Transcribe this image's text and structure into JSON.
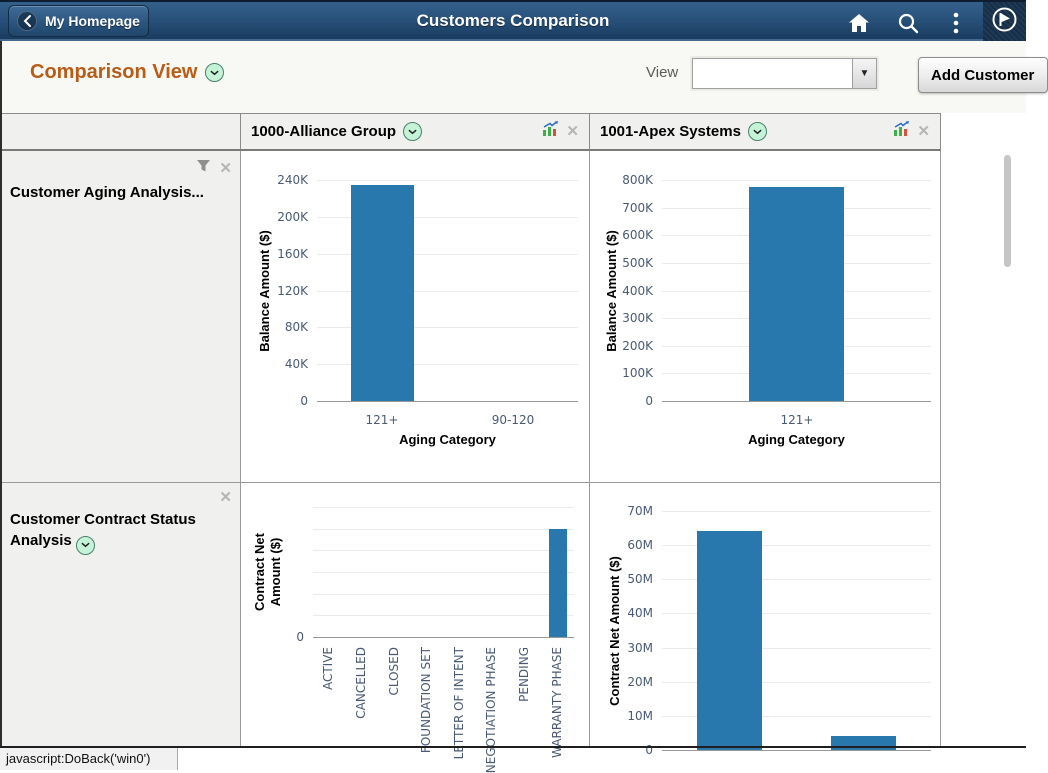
{
  "header": {
    "back_label": "My Homepage",
    "title": "Customers Comparison"
  },
  "toolbar": {
    "title": "Comparison View",
    "view_label": "View",
    "view_value": "",
    "add_button_label": "Add Customer"
  },
  "grid": {
    "columns": [
      {
        "label": "1000-Alliance Group"
      },
      {
        "label": "1001-Apex Systems"
      }
    ],
    "rows": [
      {
        "label": "Customer Aging Analysis..."
      },
      {
        "label": "Customer Contract Status Analysis"
      }
    ]
  },
  "status_bar": "javascript:DoBack('win0')",
  "colors": {
    "bar": "#2878ae",
    "accent_title": "#b85c16",
    "tick_text": "#4a5a74"
  },
  "chart_data": [
    {
      "id": "aging-alliance",
      "type": "bar",
      "customer": "1000-Alliance Group",
      "metric": "Customer Aging Analysis",
      "ylabel": "Balance Amount ($)",
      "xlabel": "Aging Category",
      "categories": [
        "121+",
        "90-120"
      ],
      "values": [
        235000,
        0
      ],
      "ylim": [
        0,
        240000
      ],
      "yticks": [
        "0",
        "40K",
        "80K",
        "120K",
        "160K",
        "200K",
        "240K"
      ],
      "grid": true,
      "legend": false
    },
    {
      "id": "aging-apex",
      "type": "bar",
      "customer": "1001-Apex Systems",
      "metric": "Customer Aging Analysis",
      "ylabel": "Balance Amount ($)",
      "xlabel": "Aging Category",
      "categories": [
        "121+"
      ],
      "values": [
        775000
      ],
      "ylim": [
        0,
        800000
      ],
      "yticks": [
        "0",
        "100K",
        "200K",
        "300K",
        "400K",
        "500K",
        "600K",
        "700K",
        "800K"
      ],
      "grid": true,
      "legend": false
    },
    {
      "id": "contract-alliance",
      "type": "bar",
      "customer": "1000-Alliance Group",
      "metric": "Customer Contract Status Analysis",
      "ylabel": "Contract Net Amount ($)",
      "xlabel": "",
      "categories": [
        "ACTIVE",
        "CANCELLED",
        "CLOSED",
        "FOUNDATION SET",
        "LETTER OF INTENT",
        "NEGOTIATION PHASE",
        "PENDING",
        "WARRANTY PHASE"
      ],
      "values": [
        0,
        0,
        0,
        0,
        0,
        0,
        0,
        2500000
      ],
      "ylim": [
        0,
        3000000
      ],
      "yticks": [
        "0",
        "",
        "",
        "",
        "",
        "",
        ""
      ],
      "grid": true,
      "legend": false
    },
    {
      "id": "contract-apex",
      "type": "bar",
      "customer": "1001-Apex Systems",
      "metric": "Customer Contract Status Analysis",
      "ylabel": "Contract Net Amount ($)",
      "xlabel": "",
      "categories": [
        "",
        ""
      ],
      "values": [
        64000000,
        4000000
      ],
      "ylim": [
        0,
        70000000
      ],
      "yticks": [
        "0",
        "10M",
        "20M",
        "30M",
        "40M",
        "50M",
        "60M",
        "70M"
      ],
      "grid": true,
      "legend": false
    }
  ]
}
